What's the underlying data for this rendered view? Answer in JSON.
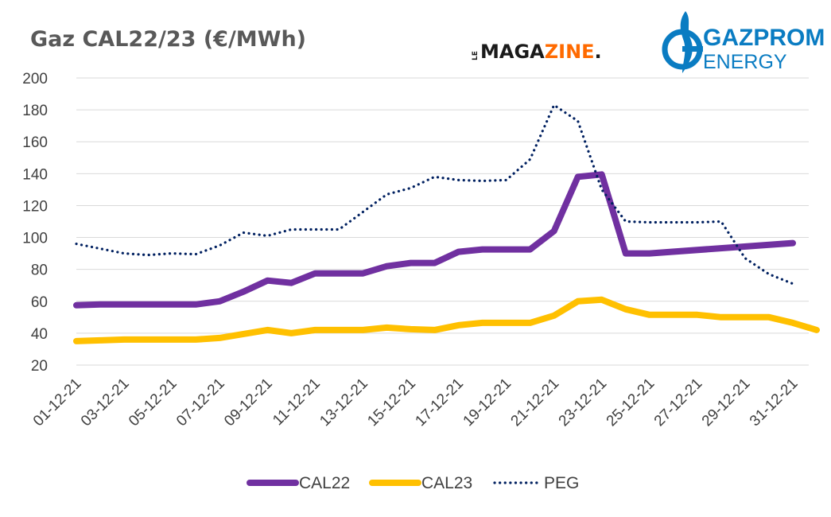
{
  "colors": {
    "background": "#ffffff",
    "title": "#595959",
    "tick": "#404040",
    "grid": "#d9d9d9",
    "cal22": "#7030a0",
    "cal23": "#ffc000",
    "peg": "#002060",
    "magazine_dark": "#1a1a1a",
    "magazine_accent": "#ff6a00",
    "gazprom_blue": "#0a7cc2"
  },
  "logos": {
    "magazine": {
      "prefix": "LE",
      "word_dark": "MAGA",
      "word_accent": "ZINE",
      "dot": "."
    },
    "gazprom": {
      "line1": "GAZPROM",
      "line2": "ENERGY",
      "icon": "gas-flame-icon"
    }
  },
  "chart_data": {
    "type": "line",
    "title": "Gaz CAL22/23 (€/MWh)",
    "xlabel": "",
    "ylabel": "",
    "ylim": [
      20,
      200
    ],
    "yticks": [
      20,
      40,
      60,
      80,
      100,
      120,
      140,
      160,
      180,
      200
    ],
    "grid": true,
    "legend_position": "bottom",
    "x_tick_labels": [
      "01-12-21",
      "03-12-21",
      "05-12-21",
      "07-12-21",
      "09-12-21",
      "11-12-21",
      "13-12-21",
      "15-12-21",
      "17-12-21",
      "19-12-21",
      "21-12-21",
      "23-12-21",
      "25-12-21",
      "27-12-21",
      "29-12-21",
      "31-12-21"
    ],
    "series": [
      {
        "name": "CAL22",
        "style": "solid-thick",
        "color": "#7030a0",
        "points": [
          [
            "01-12-21",
            57.5
          ],
          [
            "02-12-21",
            58
          ],
          [
            "03-12-21",
            58
          ],
          [
            "04-12-21",
            58
          ],
          [
            "05-12-21",
            58
          ],
          [
            "06-12-21",
            58
          ],
          [
            "07-12-21",
            60
          ],
          [
            "08-12-21",
            66
          ],
          [
            "09-12-21",
            73
          ],
          [
            "10-12-21",
            71.5
          ],
          [
            "11-12-21",
            77.5
          ],
          [
            "13-12-21",
            77.5
          ],
          [
            "14-12-21",
            82
          ],
          [
            "15-12-21",
            84
          ],
          [
            "16-12-21",
            84
          ],
          [
            "17-12-21",
            91
          ],
          [
            "18-12-21",
            92.5
          ],
          [
            "20-12-21",
            92.5
          ],
          [
            "21-12-21",
            104
          ],
          [
            "22-12-21",
            138
          ],
          [
            "23-12-21",
            139.5
          ],
          [
            "24-12-21",
            90
          ],
          [
            "25-12-21",
            90
          ],
          [
            "31-12-21",
            96.5
          ]
        ]
      },
      {
        "name": "CAL23",
        "style": "solid-thick",
        "color": "#ffc000",
        "points": [
          [
            "01-12-21",
            35
          ],
          [
            "02-12-21",
            35.5
          ],
          [
            "03-12-21",
            36
          ],
          [
            "04-12-21",
            36
          ],
          [
            "05-12-21",
            36
          ],
          [
            "06-12-21",
            36
          ],
          [
            "07-12-21",
            37
          ],
          [
            "08-12-21",
            39.5
          ],
          [
            "09-12-21",
            42
          ],
          [
            "10-12-21",
            40
          ],
          [
            "11-12-21",
            42
          ],
          [
            "13-12-21",
            42
          ],
          [
            "14-12-21",
            43.5
          ],
          [
            "15-12-21",
            42.5
          ],
          [
            "16-12-21",
            42
          ],
          [
            "17-12-21",
            45
          ],
          [
            "18-12-21",
            46.5
          ],
          [
            "20-12-21",
            46.5
          ],
          [
            "21-12-21",
            51
          ],
          [
            "22-12-21",
            60
          ],
          [
            "23-12-21",
            61
          ],
          [
            "24-12-21",
            55
          ],
          [
            "25-12-21",
            51.5
          ],
          [
            "27-12-21",
            51.5
          ],
          [
            "28-12-21",
            50
          ],
          [
            "30-12-21",
            50
          ],
          [
            "31-12-21",
            46.5
          ],
          [
            "01-01-22",
            42
          ]
        ]
      },
      {
        "name": "PEG",
        "style": "dotted",
        "color": "#002060",
        "points": [
          [
            "01-12-21",
            96
          ],
          [
            "02-12-21",
            93
          ],
          [
            "03-12-21",
            90
          ],
          [
            "04-12-21",
            89
          ],
          [
            "05-12-21",
            90
          ],
          [
            "06-12-21",
            89.5
          ],
          [
            "07-12-21",
            95
          ],
          [
            "08-12-21",
            103
          ],
          [
            "09-12-21",
            101
          ],
          [
            "10-12-21",
            105
          ],
          [
            "11-12-21",
            105
          ],
          [
            "12-12-21",
            105
          ],
          [
            "13-12-21",
            116
          ],
          [
            "14-12-21",
            127
          ],
          [
            "15-12-21",
            131
          ],
          [
            "16-12-21",
            138
          ],
          [
            "17-12-21",
            136
          ],
          [
            "18-12-21",
            135.5
          ],
          [
            "19-12-21",
            136
          ],
          [
            "20-12-21",
            149
          ],
          [
            "21-12-21",
            183
          ],
          [
            "22-12-21",
            173
          ],
          [
            "23-12-21",
            130
          ],
          [
            "24-12-21",
            110
          ],
          [
            "25-12-21",
            109.5
          ],
          [
            "26-12-21",
            109.5
          ],
          [
            "27-12-21",
            109.5
          ],
          [
            "28-12-21",
            110
          ],
          [
            "29-12-21",
            87
          ],
          [
            "30-12-21",
            77
          ],
          [
            "31-12-21",
            71
          ]
        ]
      }
    ]
  }
}
